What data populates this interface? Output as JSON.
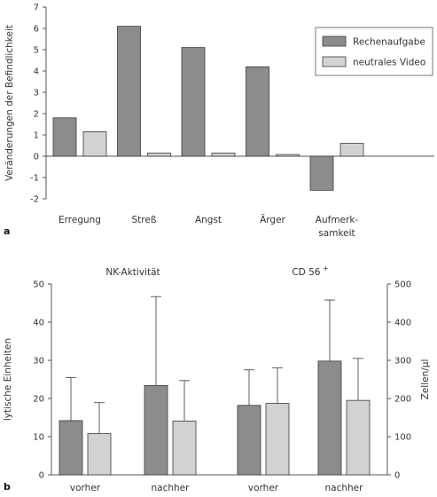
{
  "colors": {
    "dark_bar": "#8c8c8c",
    "light_bar": "#d2d2d2",
    "bar_stroke": "#3a3a3a",
    "axis": "#555555"
  },
  "chart_data": [
    {
      "type": "bar",
      "panel_label": "a",
      "ylabel": "Veränderungen der Befindlichkeit",
      "ylim": [
        -2,
        7
      ],
      "yticks": [
        -2,
        -1,
        0,
        1,
        2,
        3,
        4,
        5,
        6,
        7
      ],
      "categories": [
        "Erregung",
        "Streß",
        "Angst",
        "Ärger",
        "Aufmerk-samkeit"
      ],
      "category_lines": [
        [
          "Erregung"
        ],
        [
          "Streß"
        ],
        [
          "Angst"
        ],
        [
          "Ärger"
        ],
        [
          "Aufmerk-",
          "samkeit"
        ]
      ],
      "legend_position": "top-right",
      "series": [
        {
          "name": "Rechenaufgabe",
          "color": "#8c8c8c",
          "values": [
            1.8,
            6.1,
            5.1,
            4.2,
            -1.6
          ]
        },
        {
          "name": "neutrales Video",
          "color": "#d2d2d2",
          "values": [
            1.15,
            0.15,
            0.15,
            0.08,
            0.6
          ]
        }
      ]
    },
    {
      "type": "bar",
      "panel_label": "b",
      "groups": [
        {
          "title": "NK-Aktivität",
          "axis": "left",
          "categories": [
            "vorher",
            "nachher"
          ]
        },
        {
          "title": "CD 56",
          "title_superscript": "+",
          "axis": "right",
          "categories": [
            "vorher",
            "nachher"
          ]
        }
      ],
      "left_axis": {
        "label": "lytische Einheiten",
        "ylim": [
          0,
          50
        ],
        "yticks": [
          0,
          10,
          20,
          30,
          40,
          50
        ]
      },
      "right_axis": {
        "label": "Zellen/µl",
        "ylim": [
          0,
          500
        ],
        "yticks": [
          0,
          100,
          200,
          300,
          400,
          500
        ]
      },
      "series": [
        {
          "color": "#8c8c8c",
          "values_left": [
            14.2,
            23.4
          ],
          "errors_left": [
            11.3,
            23.3
          ],
          "values_right": [
            182,
            298
          ],
          "errors_right": [
            93,
            160
          ]
        },
        {
          "color": "#d2d2d2",
          "values_left": [
            10.8,
            14.1
          ],
          "errors_left": [
            8.1,
            10.6
          ],
          "values_right": [
            187,
            195
          ],
          "errors_right": [
            93,
            110
          ]
        }
      ]
    }
  ]
}
